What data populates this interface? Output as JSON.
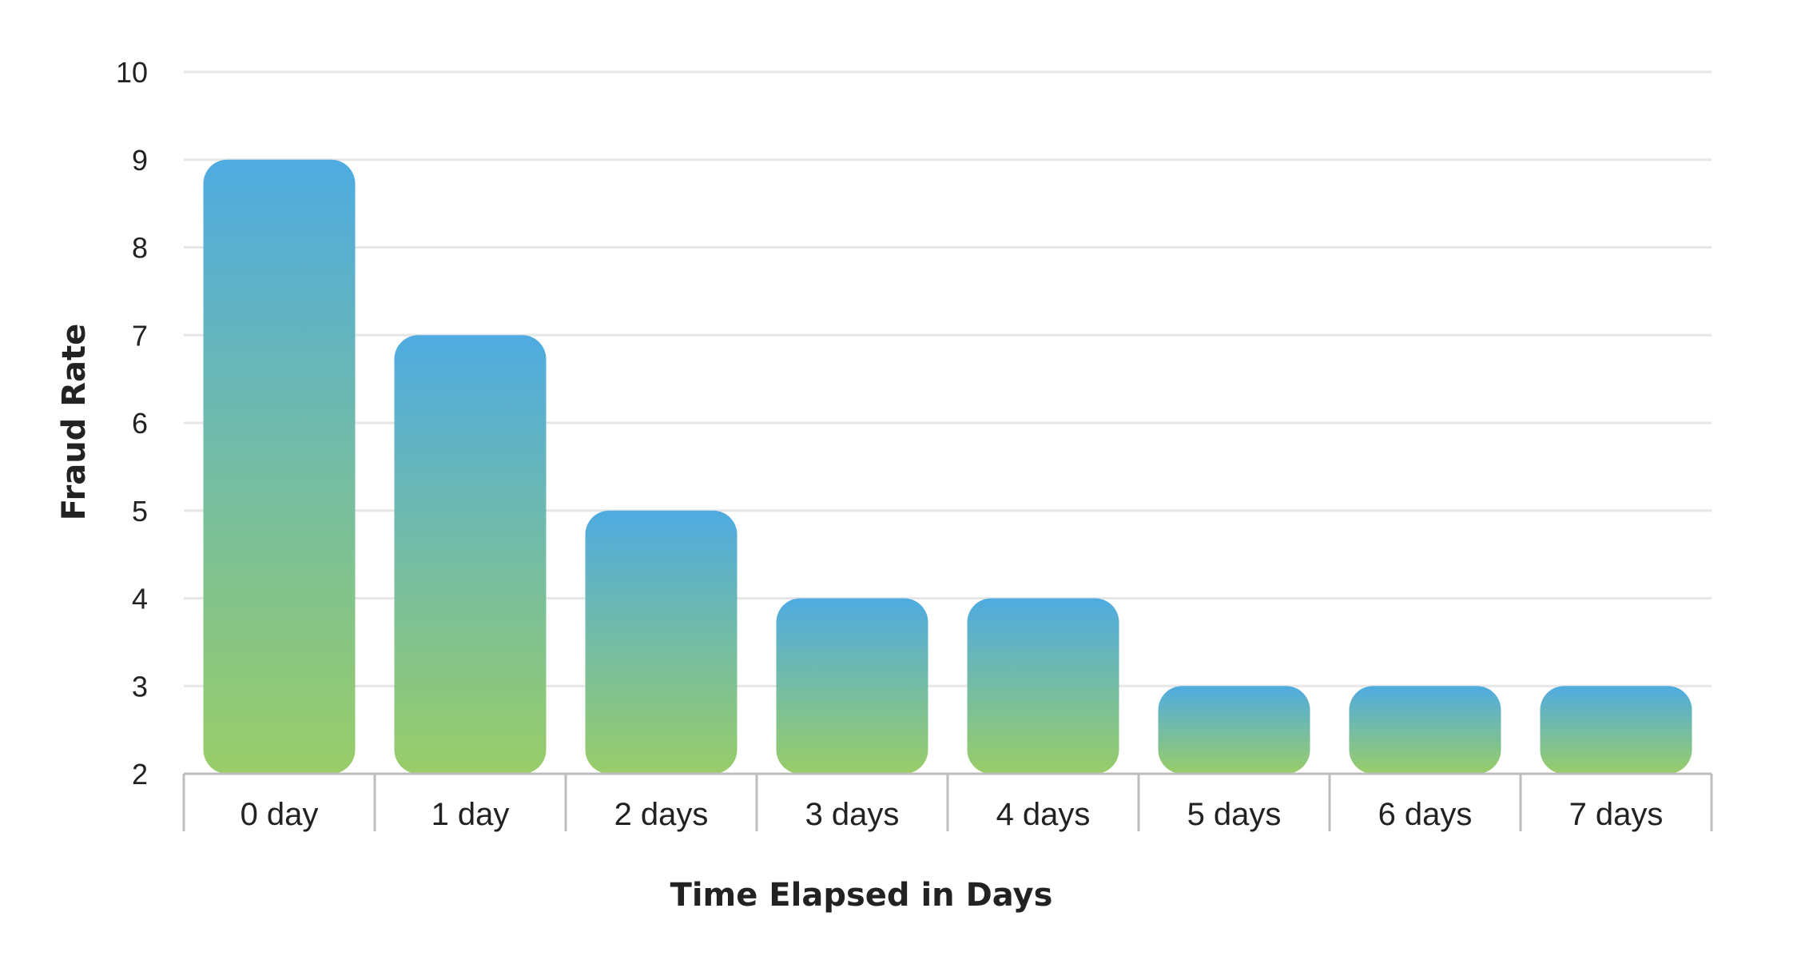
{
  "chart_data": {
    "type": "bar",
    "categories": [
      "0 day",
      "1 day",
      "2 days",
      "3 days",
      "4 days",
      "5 days",
      "6 days",
      "7 days"
    ],
    "values": [
      9,
      7,
      5,
      4,
      4,
      3,
      3,
      3
    ],
    "xlabel": "Time Elapsed in Days",
    "ylabel": "Fraud Rate",
    "ylim": [
      2,
      10
    ],
    "yticks": [
      "2",
      "3",
      "4",
      "5",
      "6",
      "7",
      "8",
      "9",
      "10"
    ],
    "grid": true,
    "colors": {
      "bar_top": "#4fabe1",
      "bar_bottom": "#99cd68",
      "grid": "#e6e6e6",
      "axis": "#bdbdbd",
      "text": "#222222"
    }
  }
}
